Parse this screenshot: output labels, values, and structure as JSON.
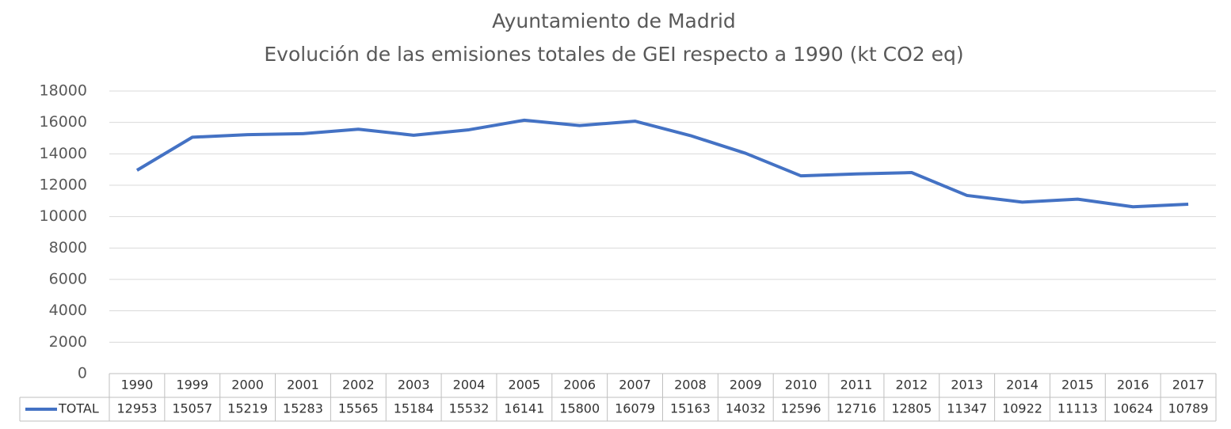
{
  "chart_data": {
    "type": "line",
    "title": "Ayuntamiento de Madrid",
    "subtitle": "Evolución de las emisiones totales de GEI respecto a 1990 (kt CO2 eq)",
    "categories": [
      "1990",
      "1999",
      "2000",
      "2001",
      "2002",
      "2003",
      "2004",
      "2005",
      "2006",
      "2007",
      "2008",
      "2009",
      "2010",
      "2011",
      "2012",
      "2013",
      "2014",
      "2015",
      "2016",
      "2017"
    ],
    "series": [
      {
        "name": "TOTAL",
        "color": "#4472c4",
        "values": [
          12953,
          15057,
          15219,
          15283,
          15565,
          15184,
          15532,
          16141,
          15800,
          16079,
          15163,
          14032,
          12596,
          12716,
          12805,
          11347,
          10922,
          11113,
          10624,
          10789
        ]
      }
    ],
    "ylim": [
      0,
      18000
    ],
    "yticks": [
      0,
      2000,
      4000,
      6000,
      8000,
      10000,
      12000,
      14000,
      16000,
      18000
    ],
    "grid": true
  }
}
